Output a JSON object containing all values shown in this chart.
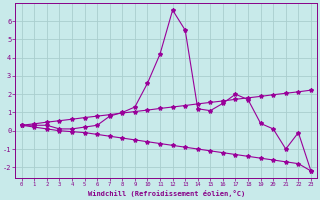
{
  "xlabel": "Windchill (Refroidissement éolien,°C)",
  "x": [
    0,
    1,
    2,
    3,
    4,
    5,
    6,
    7,
    8,
    9,
    10,
    11,
    12,
    13,
    14,
    15,
    16,
    17,
    18,
    19,
    20,
    21,
    22,
    23
  ],
  "y_main": [
    0.3,
    0.3,
    0.3,
    0.1,
    0.1,
    0.2,
    0.3,
    0.8,
    1.0,
    1.3,
    2.6,
    4.2,
    6.6,
    5.5,
    1.2,
    1.1,
    1.5,
    2.0,
    1.7,
    0.4,
    0.1,
    -1.0,
    -0.1,
    -2.2
  ],
  "y_line1": [
    0.3,
    0.38,
    0.47,
    0.55,
    0.63,
    0.72,
    0.8,
    0.88,
    0.97,
    1.05,
    1.13,
    1.22,
    1.3,
    1.38,
    1.47,
    1.55,
    1.63,
    1.72,
    1.8,
    1.88,
    1.97,
    2.05,
    2.13,
    2.22
  ],
  "y_line2": [
    0.3,
    0.2,
    0.1,
    0.0,
    -0.05,
    -0.1,
    -0.2,
    -0.3,
    -0.4,
    -0.5,
    -0.6,
    -0.7,
    -0.8,
    -0.9,
    -1.0,
    -1.1,
    -1.2,
    -1.3,
    -1.4,
    -1.5,
    -1.6,
    -1.7,
    -1.8,
    -2.2
  ],
  "line_color": "#990099",
  "bg_color": "#c8eaea",
  "grid_color": "#aacece",
  "axis_color": "#880088",
  "text_color": "#880088",
  "ylim": [
    -2.6,
    7.0
  ],
  "xlim": [
    -0.5,
    23.5
  ],
  "yticks": [
    -2,
    -1,
    0,
    1,
    2,
    3,
    4,
    5,
    6
  ],
  "xticks": [
    0,
    1,
    2,
    3,
    4,
    5,
    6,
    7,
    8,
    9,
    10,
    11,
    12,
    13,
    14,
    15,
    16,
    17,
    18,
    19,
    20,
    21,
    22,
    23
  ],
  "marker": "*",
  "markersize": 3,
  "linewidth": 0.8
}
